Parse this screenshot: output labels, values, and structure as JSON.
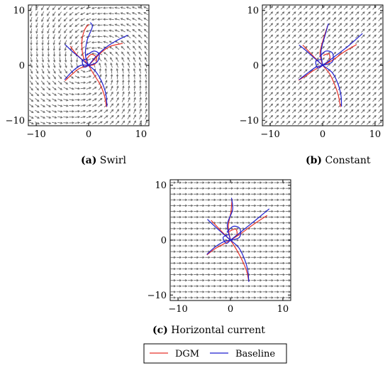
{
  "chart_data": [
    {
      "type": "line",
      "panel": "a",
      "caption_letter": "(a)",
      "caption_text": "Swirl",
      "xlim": [
        -11.5,
        11.5
      ],
      "ylim": [
        -11,
        11
      ],
      "xticks": [
        -10,
        0,
        10
      ],
      "yticks": [
        -10,
        0,
        10
      ],
      "xtick_labels": [
        "−10",
        "0",
        "10"
      ],
      "ytick_labels": [
        "−10",
        "0",
        "10"
      ],
      "field": "swirl",
      "series": [
        {
          "name": "DGM",
          "color": "#e8332b",
          "paths": [
            [
              [
                0,
                0
              ],
              [
                -1.0,
                1.5
              ],
              [
                -1.3,
                4.2
              ],
              [
                -0.8,
                6.4
              ],
              [
                0.0,
                7.5
              ]
            ],
            [
              [
                0,
                0
              ],
              [
                0.9,
                -1.5
              ],
              [
                2.2,
                -3.5
              ],
              [
                3.0,
                -5.5
              ],
              [
                3.4,
                -7.6
              ]
            ],
            [
              [
                0,
                0
              ],
              [
                -1.8,
                -0.6
              ],
              [
                -3.0,
                -1.5
              ],
              [
                -4.5,
                -2.8
              ]
            ],
            [
              [
                0,
                0
              ],
              [
                -1.2,
                1.0
              ],
              [
                -2.5,
                2.2
              ],
              [
                -3.5,
                3.5
              ]
            ],
            [
              [
                0,
                0
              ],
              [
                1.0,
                1.0
              ],
              [
                2.6,
                2.5
              ],
              [
                4.2,
                3.5
              ],
              [
                6.5,
                4.0
              ]
            ],
            [
              [
                0,
                0
              ],
              [
                1.2,
                0.2
              ],
              [
                1.5,
                1.4
              ],
              [
                0.5,
                2.0
              ],
              [
                -0.5,
                1.0
              ]
            ]
          ]
        },
        {
          "name": "Baseline",
          "color": "#1f1fcf",
          "paths": [
            [
              [
                0,
                0
              ],
              [
                -0.6,
                1.8
              ],
              [
                -0.3,
                4.5
              ],
              [
                0.7,
                7.0
              ],
              [
                0.3,
                7.8
              ]
            ],
            [
              [
                0,
                0
              ],
              [
                1.4,
                -1.2
              ],
              [
                2.6,
                -3.2
              ],
              [
                3.3,
                -5.3
              ],
              [
                3.5,
                -7.5
              ]
            ],
            [
              [
                0,
                0
              ],
              [
                -1.5,
                0.0
              ],
              [
                -3.0,
                -1.0
              ],
              [
                -4.6,
                -2.6
              ]
            ],
            [
              [
                0,
                0
              ],
              [
                -1.7,
                1.4
              ],
              [
                -3.2,
                2.6
              ],
              [
                -4.5,
                3.8
              ]
            ],
            [
              [
                0,
                0
              ],
              [
                1.4,
                1.6
              ],
              [
                3.2,
                3.2
              ],
              [
                5.3,
                4.5
              ],
              [
                7.5,
                5.5
              ]
            ],
            [
              [
                0,
                0
              ],
              [
                1.6,
                0.6
              ],
              [
                2.0,
                2.0
              ],
              [
                1.0,
                2.6
              ],
              [
                -0.5,
                1.8
              ]
            ],
            [
              [
                0,
                0
              ],
              [
                -0.8,
                -0.3
              ],
              [
                -1.2,
                0.8
              ],
              [
                -0.3,
                1.2
              ]
            ]
          ]
        }
      ]
    },
    {
      "type": "line",
      "panel": "b",
      "caption_letter": "(b)",
      "caption_text": "Constant",
      "xlim": [
        -11.5,
        11.5
      ],
      "ylim": [
        -11,
        11
      ],
      "xticks": [
        -10,
        0,
        10
      ],
      "yticks": [
        -10,
        0,
        10
      ],
      "xtick_labels": [
        "−10",
        "0",
        "10"
      ],
      "ytick_labels": [
        "−10",
        "0",
        "10"
      ],
      "field": "constant",
      "series": [
        {
          "name": "DGM",
          "color": "#e8332b",
          "paths": [
            [
              [
                0,
                0
              ],
              [
                -0.5,
                2.2
              ],
              [
                0.2,
                5.0
              ],
              [
                1.0,
                7.3
              ]
            ],
            [
              [
                0,
                0
              ],
              [
                1.3,
                -1.5
              ],
              [
                2.3,
                -3.5
              ],
              [
                3.0,
                -5.5
              ],
              [
                3.4,
                -7.6
              ]
            ],
            [
              [
                0,
                0
              ],
              [
                -1.7,
                -0.9
              ],
              [
                -3.2,
                -1.9
              ],
              [
                -4.6,
                -2.7
              ]
            ],
            [
              [
                0,
                0
              ],
              [
                -1.4,
                1.3
              ],
              [
                -2.7,
                2.6
              ],
              [
                -3.8,
                3.7
              ]
            ],
            [
              [
                0,
                0
              ],
              [
                2.0,
                1.0
              ],
              [
                4.0,
                2.4
              ],
              [
                6.5,
                3.8
              ]
            ],
            [
              [
                0,
                0
              ],
              [
                1.3,
                0.8
              ],
              [
                1.2,
                2.1
              ],
              [
                0.1,
                1.8
              ]
            ]
          ]
        },
        {
          "name": "Baseline",
          "color": "#1f1fcf",
          "paths": [
            [
              [
                0,
                0
              ],
              [
                -0.3,
                2.6
              ],
              [
                0.5,
                5.6
              ],
              [
                1.1,
                7.6
              ]
            ],
            [
              [
                0,
                0
              ],
              [
                1.8,
                -1.3
              ],
              [
                2.9,
                -3.3
              ],
              [
                3.5,
                -5.5
              ],
              [
                3.6,
                -7.5
              ]
            ],
            [
              [
                0,
                0
              ],
              [
                -1.4,
                -0.4
              ],
              [
                -3.0,
                -1.5
              ],
              [
                -4.5,
                -2.6
              ]
            ],
            [
              [
                0,
                0
              ],
              [
                -1.9,
                1.6
              ],
              [
                -3.3,
                2.8
              ],
              [
                -4.5,
                3.7
              ]
            ],
            [
              [
                0,
                0
              ],
              [
                2.4,
                1.7
              ],
              [
                5.0,
                3.6
              ],
              [
                7.6,
                5.8
              ]
            ],
            [
              [
                0,
                0
              ],
              [
                1.8,
                0.6
              ],
              [
                1.9,
                2.2
              ],
              [
                0.6,
                2.6
              ],
              [
                -0.6,
                1.6
              ]
            ],
            [
              [
                0,
                0
              ],
              [
                -0.9,
                -0.5
              ],
              [
                -1.3,
                0.7
              ],
              [
                -0.2,
                1.1
              ]
            ]
          ]
        }
      ]
    },
    {
      "type": "line",
      "panel": "c",
      "caption_letter": "(c)",
      "caption_text": "Horizontal current",
      "xlim": [
        -11.5,
        11.5
      ],
      "ylim": [
        -11,
        11
      ],
      "xticks": [
        -10,
        0,
        10
      ],
      "yticks": [
        -10,
        0,
        10
      ],
      "xtick_labels": [
        "−10",
        "0",
        "10"
      ],
      "ytick_labels": [
        "−10",
        "0",
        "10"
      ],
      "field": "horizontal",
      "series": [
        {
          "name": "DGM",
          "color": "#e8332b",
          "paths": [
            [
              [
                0,
                0
              ],
              [
                -0.4,
                2.5
              ],
              [
                0.1,
                5.2
              ],
              [
                0.3,
                7.5
              ]
            ],
            [
              [
                0,
                0
              ],
              [
                1.2,
                -1.8
              ],
              [
                2.3,
                -3.8
              ],
              [
                3.1,
                -5.7
              ],
              [
                3.5,
                -7.5
              ]
            ],
            [
              [
                0,
                0
              ],
              [
                -1.5,
                -0.8
              ],
              [
                -3.0,
                -1.6
              ],
              [
                -4.5,
                -2.7
              ]
            ],
            [
              [
                0,
                0
              ],
              [
                -1.3,
                1.2
              ],
              [
                -2.6,
                2.5
              ],
              [
                -3.7,
                3.6
              ]
            ],
            [
              [
                0,
                0
              ],
              [
                2.0,
                1.2
              ],
              [
                4.3,
                2.8
              ],
              [
                7.0,
                4.5
              ]
            ],
            [
              [
                0,
                0
              ],
              [
                1.2,
                0.9
              ],
              [
                1.0,
                2.0
              ],
              [
                -0.2,
                1.6
              ]
            ]
          ]
        },
        {
          "name": "Baseline",
          "color": "#1f1fcf",
          "paths": [
            [
              [
                0,
                0
              ],
              [
                -0.6,
                2.8
              ],
              [
                0.4,
                5.5
              ],
              [
                0.2,
                7.7
              ]
            ],
            [
              [
                0,
                0
              ],
              [
                1.6,
                -1.4
              ],
              [
                2.7,
                -3.5
              ],
              [
                3.3,
                -5.5
              ],
              [
                3.5,
                -7.6
              ]
            ],
            [
              [
                0,
                0
              ],
              [
                -1.3,
                -0.3
              ],
              [
                -3.0,
                -1.3
              ],
              [
                -4.5,
                -2.6
              ]
            ],
            [
              [
                0,
                0
              ],
              [
                -1.8,
                1.5
              ],
              [
                -3.2,
                2.7
              ],
              [
                -4.4,
                3.8
              ]
            ],
            [
              [
                0,
                0
              ],
              [
                2.4,
                1.8
              ],
              [
                5.0,
                3.8
              ],
              [
                7.4,
                5.7
              ]
            ],
            [
              [
                0,
                0
              ],
              [
                1.7,
                0.5
              ],
              [
                1.8,
                2.1
              ],
              [
                0.5,
                2.5
              ],
              [
                -0.7,
                1.4
              ]
            ],
            [
              [
                0,
                0
              ],
              [
                -0.8,
                -0.6
              ],
              [
                -1.4,
                0.5
              ],
              [
                -0.4,
                1.0
              ]
            ]
          ]
        }
      ]
    }
  ],
  "legend": {
    "items": [
      {
        "label": "DGM",
        "color": "#e8332b"
      },
      {
        "label": "Baseline",
        "color": "#1f1fcf"
      }
    ]
  }
}
